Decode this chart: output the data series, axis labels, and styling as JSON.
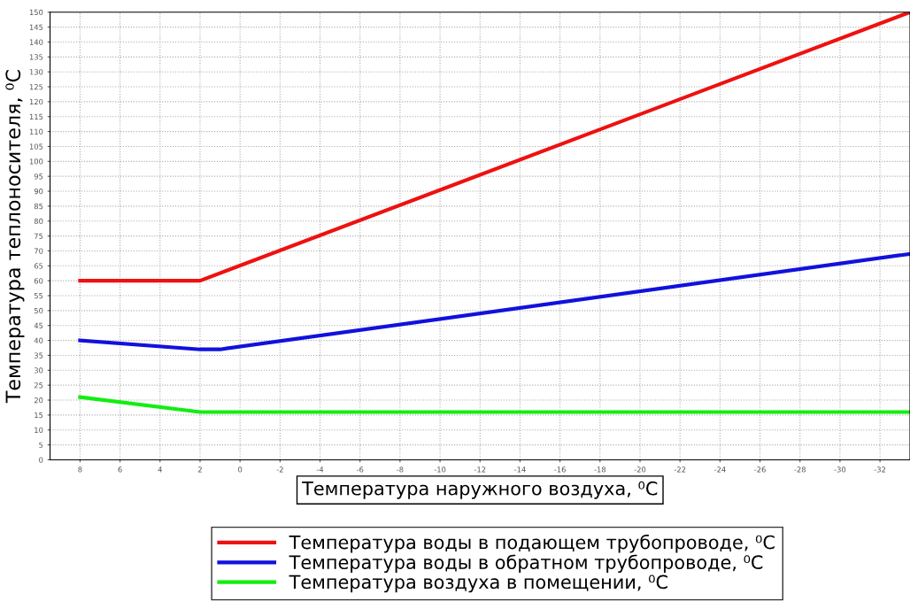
{
  "chart_data": {
    "type": "line",
    "xlabel": "Температура наружного воздуха, ⁰C",
    "ylabel": "Температура теплоносителя, ⁰C",
    "series": [
      {
        "name": "Температура воды в подающем трубопроводе, ⁰C",
        "color": "#ee1111",
        "x": [
          8,
          2,
          -33.5
        ],
        "values": [
          60,
          60,
          150
        ]
      },
      {
        "name": "Температура воды в обратном трубопроводе, ⁰C",
        "color": "#1111dd",
        "x": [
          8,
          2,
          1,
          -33.5
        ],
        "values": [
          40,
          37,
          37,
          69
        ]
      },
      {
        "name": "Температура воздуха в помещении, ⁰C",
        "color": "#11ee11",
        "x": [
          8,
          2,
          -33.5
        ],
        "values": [
          21,
          16,
          16
        ]
      }
    ],
    "xlim": [
      9.5,
      -33.5
    ],
    "xticks": [
      8,
      6,
      4,
      2,
      0,
      -2,
      -4,
      -6,
      -8,
      -10,
      -12,
      -14,
      -16,
      -18,
      -20,
      -22,
      -24,
      -26,
      -28,
      -30,
      -32
    ],
    "ylim": [
      0,
      150
    ],
    "yticks": [
      0,
      5,
      10,
      15,
      20,
      25,
      30,
      35,
      40,
      45,
      50,
      55,
      60,
      65,
      70,
      75,
      80,
      85,
      90,
      95,
      100,
      105,
      110,
      115,
      120,
      125,
      130,
      135,
      140,
      145,
      150
    ],
    "grid": true,
    "legend": "bottom",
    "line_style": "solid",
    "marker": "none"
  }
}
